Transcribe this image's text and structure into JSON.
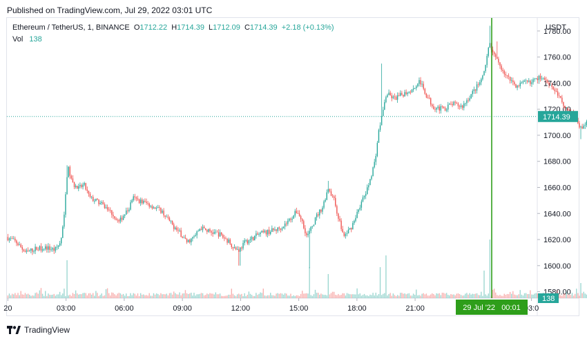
{
  "header": {
    "published": "Published on TradingView.com, Jul 29, 2022 03:01 UTC"
  },
  "legend": {
    "symbol": "Ethereum / TetherUS, 1, BINANCE",
    "o_label": "O",
    "o_value": "1712.22",
    "h_label": "H",
    "h_value": "1714.39",
    "l_label": "L",
    "l_value": "1712.09",
    "c_label": "C",
    "c_value": "1714.39",
    "change": "+2.18 (+0.13%)",
    "vol_label": "Vol",
    "vol_value": "138"
  },
  "axis": {
    "currency": "USDT"
  },
  "footer": {
    "brand": "TradingView"
  },
  "colors": {
    "up": "#26a69a",
    "down": "#ef5350",
    "cursor": "#2e9e1a",
    "price_tag": "#26a69a"
  },
  "chart_data": {
    "type": "candlestick",
    "interval": "1 minute",
    "ylim": [
      1575,
      1790
    ],
    "y_ticks": [
      "1780.00",
      "1760.00",
      "1740.00",
      "1720.00",
      "1700.00",
      "1680.00",
      "1660.00",
      "1640.00",
      "1620.00",
      "1600.00",
      "1580.00"
    ],
    "y_tick_values": [
      1780,
      1760,
      1740,
      1720,
      1700,
      1680,
      1660,
      1640,
      1620,
      1600,
      1580
    ],
    "x_ticks": [
      "20",
      "03:00",
      "06:00",
      "09:00",
      "12:00",
      "15:00",
      "18:00",
      "21:00",
      "03:0"
    ],
    "x_tick_hours": [
      -3,
      0,
      3,
      6,
      9,
      12,
      15,
      18,
      24
    ],
    "x_range_hours": [
      -3.05,
      24.3
    ],
    "last_price": 1714.39,
    "last_price_label": "1714.39",
    "volume_label": "138",
    "cursor_label": "29 Jul '22   00:01",
    "cursor_hour": 21.95,
    "price_path": [
      [
        -3.0,
        1622
      ],
      [
        -2.5,
        1618
      ],
      [
        -2.0,
        1610
      ],
      [
        -1.5,
        1613
      ],
      [
        -1.0,
        1614
      ],
      [
        -0.5,
        1612
      ],
      [
        -0.2,
        1618
      ],
      [
        0.0,
        1640
      ],
      [
        0.1,
        1668
      ],
      [
        0.2,
        1674
      ],
      [
        0.4,
        1663
      ],
      [
        0.7,
        1659
      ],
      [
        1.0,
        1662
      ],
      [
        1.3,
        1652
      ],
      [
        1.7,
        1649
      ],
      [
        2.0,
        1646
      ],
      [
        2.4,
        1641
      ],
      [
        2.8,
        1633
      ],
      [
        3.0,
        1638
      ],
      [
        3.3,
        1643
      ],
      [
        3.5,
        1652
      ],
      [
        3.8,
        1650
      ],
      [
        4.2,
        1648
      ],
      [
        4.6,
        1645
      ],
      [
        5.0,
        1642
      ],
      [
        5.5,
        1632
      ],
      [
        6.0,
        1624
      ],
      [
        6.3,
        1618
      ],
      [
        6.7,
        1622
      ],
      [
        7.0,
        1629
      ],
      [
        7.5,
        1626
      ],
      [
        8.0,
        1624
      ],
      [
        8.5,
        1618
      ],
      [
        8.8,
        1613
      ],
      [
        9.0,
        1612
      ],
      [
        9.3,
        1618
      ],
      [
        9.7,
        1621
      ],
      [
        10.0,
        1624
      ],
      [
        10.5,
        1626
      ],
      [
        11.0,
        1628
      ],
      [
        11.4,
        1632
      ],
      [
        11.7,
        1637
      ],
      [
        12.0,
        1642
      ],
      [
        12.3,
        1632
      ],
      [
        12.5,
        1622
      ],
      [
        12.7,
        1628
      ],
      [
        13.0,
        1638
      ],
      [
        13.3,
        1645
      ],
      [
        13.6,
        1660
      ],
      [
        13.9,
        1650
      ],
      [
        14.1,
        1638
      ],
      [
        14.4,
        1622
      ],
      [
        14.8,
        1630
      ],
      [
        15.2,
        1645
      ],
      [
        15.6,
        1658
      ],
      [
        16.0,
        1680
      ],
      [
        16.2,
        1703
      ],
      [
        16.4,
        1718
      ],
      [
        16.6,
        1732
      ],
      [
        17.0,
        1728
      ],
      [
        17.5,
        1732
      ],
      [
        18.0,
        1736
      ],
      [
        18.3,
        1742
      ],
      [
        18.6,
        1732
      ],
      [
        19.0,
        1722
      ],
      [
        19.5,
        1720
      ],
      [
        20.0,
        1724
      ],
      [
        20.5,
        1722
      ],
      [
        21.0,
        1732
      ],
      [
        21.3,
        1738
      ],
      [
        21.6,
        1745
      ],
      [
        21.9,
        1770
      ],
      [
        22.1,
        1762
      ],
      [
        22.4,
        1755
      ],
      [
        22.8,
        1745
      ],
      [
        23.3,
        1738
      ],
      [
        23.7,
        1740
      ],
      [
        24.2,
        1742
      ],
      [
        24.6,
        1745
      ],
      [
        25.0,
        1740
      ],
      [
        25.4,
        1732
      ],
      [
        25.8,
        1722
      ],
      [
        26.2,
        1718
      ],
      [
        26.5,
        1708
      ],
      [
        26.8,
        1706
      ],
      [
        27.1,
        1716
      ],
      [
        27.5,
        1720
      ],
      [
        27.9,
        1713
      ],
      [
        28.2,
        1708
      ],
      [
        28.6,
        1712
      ],
      [
        29.0,
        1715
      ]
    ],
    "spikes": [
      {
        "hour": 0.05,
        "high": 1677
      },
      {
        "hour": 8.95,
        "low": 1600
      },
      {
        "hour": 12.55,
        "low": 1598
      },
      {
        "hour": 13.55,
        "high": 1665
      },
      {
        "hour": 16.25,
        "high": 1755
      },
      {
        "hour": 21.85,
        "high": 1784
      },
      {
        "hour": 22.25,
        "high": 1772
      },
      {
        "hour": 26.55,
        "low": 1697
      },
      {
        "hour": 27.15,
        "high": 1732
      }
    ],
    "volume_peaks": [
      {
        "hour": 0.05,
        "rel": 0.55
      },
      {
        "hour": 12.55,
        "rel": 0.45
      },
      {
        "hour": 13.55,
        "rel": 0.35
      },
      {
        "hour": 16.2,
        "rel": 0.45
      },
      {
        "hour": 16.5,
        "rel": 0.62
      },
      {
        "hour": 21.85,
        "rel": 0.85
      },
      {
        "hour": 21.55,
        "rel": 0.4
      },
      {
        "hour": 26.55,
        "rel": 0.22
      }
    ]
  }
}
